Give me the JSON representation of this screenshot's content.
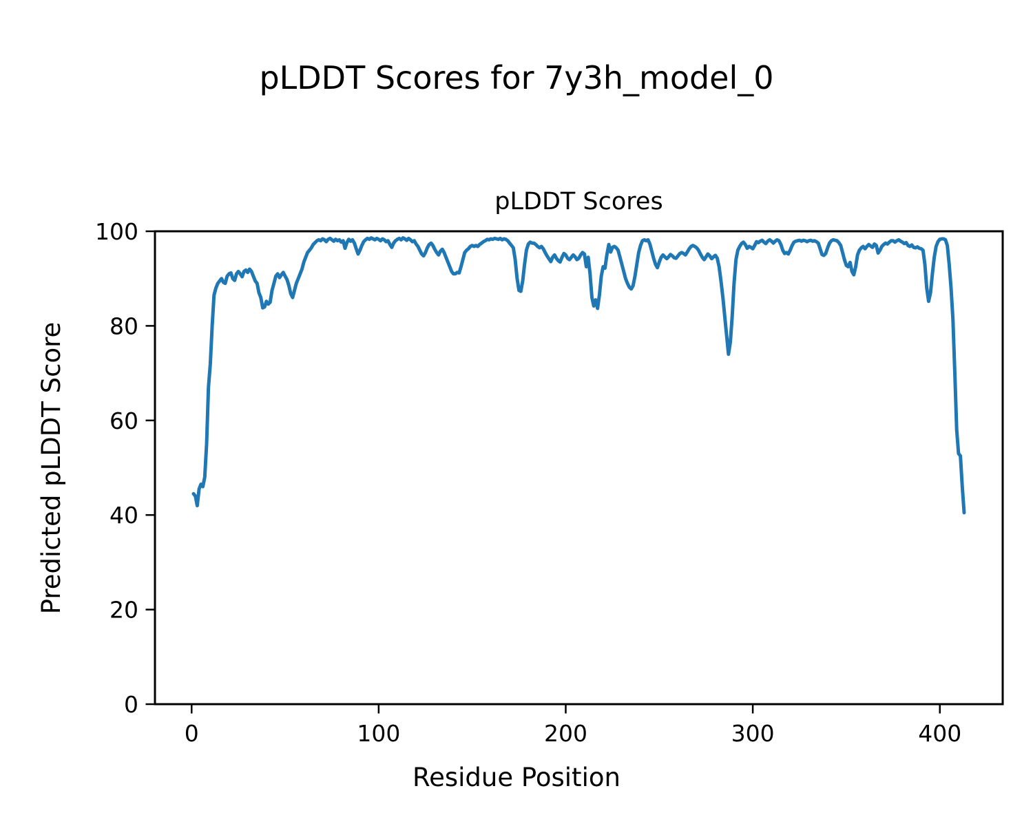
{
  "page": {
    "suptitle": "pLDDT Scores for 7y3h_model_0"
  },
  "chart_data": {
    "type": "line",
    "title": "pLDDT Scores",
    "xlabel": "Residue Position",
    "ylabel": "Predicted pLDDT Score",
    "xticks": [
      0,
      100,
      200,
      300,
      400
    ],
    "yticks": [
      0,
      20,
      40,
      60,
      80,
      100
    ],
    "xlim": [
      -19.6,
      433.6
    ],
    "ylim": [
      0,
      100
    ],
    "grid": false,
    "legend": "none",
    "background": "#ffffff",
    "axis_color": "#000000",
    "series": [
      {
        "name": "pLDDT",
        "color": "#1f77b4",
        "x_start": 1,
        "x_step": 1,
        "values": [
          44.5,
          44,
          42,
          45.5,
          46.5,
          46,
          48,
          55,
          67,
          72,
          80,
          86.5,
          88,
          89,
          89.5,
          90,
          89.2,
          89,
          90.5,
          91,
          91.2,
          90,
          89.6,
          91,
          91.5,
          91,
          90.4,
          91.5,
          91.8,
          91.3,
          92,
          91.5,
          90.5,
          89.5,
          89,
          87,
          86,
          83.8,
          84,
          85.2,
          84.6,
          85,
          87.5,
          89,
          90.5,
          91,
          90.2,
          90.8,
          91.3,
          90.5,
          89.8,
          88.5,
          86.8,
          86,
          87.5,
          89,
          90,
          91,
          92,
          93.5,
          94.5,
          95.5,
          96,
          96.5,
          97.2,
          97.6,
          98,
          98.2,
          98,
          98.4,
          98.2,
          97.8,
          98.3,
          98.5,
          98.2,
          97.9,
          98.3,
          98,
          98.2,
          97.7,
          98,
          96.4,
          97.6,
          98.3,
          97.9,
          98.2,
          97.5,
          96.3,
          95.2,
          96,
          97,
          97.8,
          98.2,
          98.5,
          98.3,
          98.6,
          98.4,
          98.2,
          98.5,
          98.3,
          98,
          98.4,
          98.2,
          97.8,
          98,
          97.2,
          96.6,
          97.5,
          98,
          98.3,
          98.5,
          98.2,
          98.6,
          98.4,
          98.1,
          98.5,
          98.2,
          97.8,
          98,
          97.3,
          96.8,
          96,
          95.2,
          94.8,
          95.5,
          96.5,
          97.2,
          97.5,
          97,
          96.2,
          95.5,
          95,
          95.8,
          96.2,
          95.5,
          94.5,
          93.5,
          92.5,
          91.5,
          91,
          91,
          91.3,
          91.2,
          92.5,
          94,
          95.5,
          96,
          96.3,
          96.8,
          97,
          96.8,
          97,
          96.8,
          97.2,
          97.5,
          97.8,
          98,
          98.3,
          98.2,
          98.4,
          98.3,
          98.5,
          98.4,
          98.3,
          98.5,
          98.2,
          98.4,
          98.3,
          98,
          97.5,
          97,
          96.5,
          94,
          90,
          87.5,
          87.3,
          89.5,
          93,
          96,
          97.3,
          97.7,
          97.5,
          97.5,
          97.2,
          96.8,
          96.5,
          96.8,
          96.3,
          95.5,
          94.8,
          94.2,
          93.6,
          94.5,
          95,
          94.3,
          93.8,
          93.5,
          94.5,
          95.3,
          95,
          94.3,
          94,
          94.5,
          95,
          94.6,
          94,
          94.3,
          95,
          95.5,
          95.2,
          92.5,
          94.5,
          91,
          86,
          84.2,
          85.5,
          83.7,
          86.5,
          90.5,
          92.5,
          92.2,
          95,
          97.2,
          95.6,
          96.6,
          96.8,
          96.5,
          96,
          94.5,
          93,
          91.5,
          90,
          89,
          88.2,
          87.8,
          88.5,
          90.5,
          93,
          95.5,
          97,
          98,
          98.2,
          98,
          98.2,
          97.3,
          95.8,
          94.3,
          93,
          92.3,
          93.5,
          94.5,
          95,
          94.6,
          94.2,
          94.6,
          95.1,
          94.8,
          94.4,
          94.3,
          94.8,
          95.3,
          95.5,
          95.3,
          95,
          95.6,
          96.3,
          96.8,
          97,
          96.8,
          96.5,
          96,
          95.2,
          94.5,
          94,
          94.6,
          95.2,
          94.8,
          94.2,
          94.6,
          94.9,
          94.3,
          92.5,
          89.5,
          86,
          82,
          78,
          74,
          76.5,
          82,
          89,
          94,
          96,
          96.8,
          97.4,
          97.7,
          97.2,
          96.4,
          96.8,
          96.6,
          96.3,
          97,
          97.8,
          97.6,
          97.9,
          98.1,
          97.7,
          97.4,
          97.9,
          98.2,
          97.9,
          97.5,
          97.9,
          98.2,
          98,
          97.2,
          96,
          95.3,
          95.5,
          95.2,
          96,
          97,
          97.7,
          97.9,
          98,
          98.1,
          97.9,
          98.1,
          98,
          97.8,
          98,
          98.1,
          97.9,
          98,
          97.8,
          97.5,
          96.3,
          95.1,
          94.9,
          95.3,
          96.5,
          97.5,
          98,
          98.2,
          98.1,
          98,
          97.6,
          97,
          95.5,
          94,
          92.8,
          92.5,
          93.4,
          91.5,
          90.8,
          92.5,
          95,
          96,
          96.5,
          96.8,
          96.3,
          96.8,
          97.2,
          96.9,
          96.6,
          97.3,
          97,
          95.4,
          96,
          96.8,
          97.2,
          97.5,
          97.3,
          97.7,
          98,
          98,
          97.7,
          98,
          98.2,
          97.9,
          97.7,
          97.4,
          97.6,
          97,
          96.8,
          97.1,
          96.6,
          96.5,
          96.7,
          96.4,
          96.3,
          96,
          93,
          88,
          85.2,
          87,
          91,
          94.5,
          96.8,
          97.8,
          98.3,
          98.4,
          98.4,
          98.2,
          97,
          93,
          88,
          81.5,
          70,
          58,
          53,
          52.5,
          46,
          40.5
        ]
      }
    ]
  }
}
